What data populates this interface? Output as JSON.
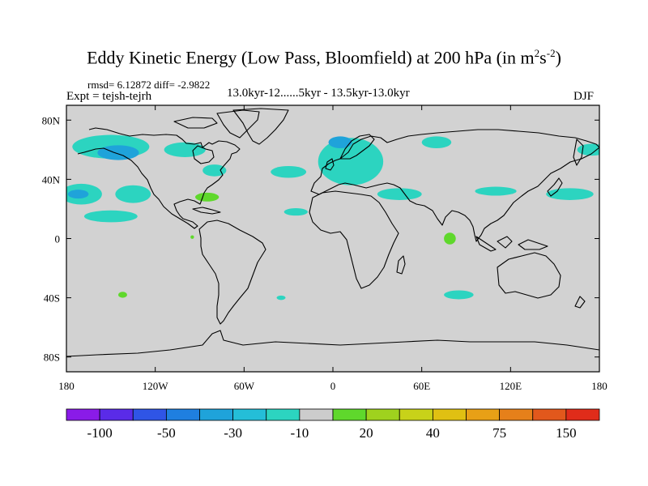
{
  "figure": {
    "title_main": "Eddy Kinetic Energy (Low Pass, Bloomfield) at 200 hPa (in m",
    "title_sup1": "2",
    "title_mid": "s",
    "title_sup2": "-2",
    "title_end": ")",
    "stats": "rmsd= 6.12872 diff= -2.9822",
    "expt": "Expt = tejsh-tejrh",
    "period": "13.0kyr-12......5kyr - 13.5kyr-13.0kyr",
    "season": "DJF"
  },
  "chart_data": {
    "type": "heatmap",
    "projection": "cylindrical equidistant",
    "variable": "Eddy kinetic energy difference",
    "units": "m2 s-2",
    "lon_range": [
      -180,
      180
    ],
    "lat_range": [
      -90,
      90
    ],
    "x_ticks": [
      {
        "lon": -180,
        "label": "180"
      },
      {
        "lon": -120,
        "label": "120W"
      },
      {
        "lon": -60,
        "label": "60W"
      },
      {
        "lon": 0,
        "label": "0"
      },
      {
        "lon": 60,
        "label": "60E"
      },
      {
        "lon": 120,
        "label": "120E"
      },
      {
        "lon": 180,
        "label": "180"
      }
    ],
    "y_ticks": [
      {
        "lat": 80,
        "label": "80N"
      },
      {
        "lat": 40,
        "label": "40N"
      },
      {
        "lat": 0,
        "label": "0"
      },
      {
        "lat": -40,
        "label": "40S"
      },
      {
        "lat": -80,
        "label": "80S"
      }
    ],
    "colorbar": {
      "colors": [
        "#8a1be8",
        "#5a2be8",
        "#2f55e6",
        "#1f7fe0",
        "#1fa3da",
        "#24bed8",
        "#2cd4c0",
        "#cccccc",
        "#5fd82c",
        "#9fd21e",
        "#c8d219",
        "#e0c012",
        "#e8a016",
        "#e6801a",
        "#e2581c",
        "#e02c1a"
      ],
      "labels": [
        {
          "boundary": 1,
          "text": "-100"
        },
        {
          "boundary": 3,
          "text": "-50"
        },
        {
          "boundary": 5,
          "text": "-30"
        },
        {
          "boundary": 7,
          "text": "-10"
        },
        {
          "boundary": 9,
          "text": "20"
        },
        {
          "boundary": 11,
          "text": "40"
        },
        {
          "boundary": 13,
          "text": "75"
        },
        {
          "boundary": 15,
          "text": "150"
        }
      ]
    },
    "anomalies": [
      {
        "name": "north-pacific-west",
        "lon": -150,
        "lat": 62,
        "rlon": 26,
        "rlat": 8,
        "level": -10
      },
      {
        "name": "north-pacific-core",
        "lon": -145,
        "lat": 58,
        "rlon": 14,
        "rlat": 5,
        "level": -30
      },
      {
        "name": "alaska-gulf",
        "lon": -100,
        "lat": 60,
        "rlon": 14,
        "rlat": 5,
        "level": -10
      },
      {
        "name": "central-pacific",
        "lon": -170,
        "lat": 30,
        "rlon": 14,
        "rlat": 7,
        "level": -10
      },
      {
        "name": "central-pacific-core",
        "lon": -172,
        "lat": 30,
        "rlon": 7,
        "rlat": 3,
        "level": -30
      },
      {
        "name": "east-pacific",
        "lon": -135,
        "lat": 30,
        "rlon": 12,
        "rlat": 6,
        "level": -10
      },
      {
        "name": "east-pacific-south",
        "lon": -150,
        "lat": 15,
        "rlon": 18,
        "rlat": 4,
        "level": -10
      },
      {
        "name": "hudson",
        "lon": -80,
        "lat": 46,
        "rlon": 8,
        "rlat": 4,
        "level": -10
      },
      {
        "name": "north-atlantic",
        "lon": -30,
        "lat": 45,
        "rlon": 12,
        "rlat": 4,
        "level": -10
      },
      {
        "name": "europe",
        "lon": 12,
        "lat": 52,
        "rlon": 22,
        "rlat": 16,
        "level": -10
      },
      {
        "name": "scandinavia",
        "lon": 5,
        "lat": 65,
        "rlon": 8,
        "rlat": 4,
        "level": -30
      },
      {
        "name": "siberia",
        "lon": 70,
        "lat": 65,
        "rlon": 10,
        "rlat": 4,
        "level": -10
      },
      {
        "name": "east-russia",
        "lon": 175,
        "lat": 60,
        "rlon": 10,
        "rlat": 4,
        "level": -10
      },
      {
        "name": "middle-east",
        "lon": 45,
        "lat": 30,
        "rlon": 15,
        "rlat": 4,
        "level": -10
      },
      {
        "name": "china",
        "lon": 110,
        "lat": 32,
        "rlon": 14,
        "rlat": 3,
        "level": -10
      },
      {
        "name": "west-pacific",
        "lon": 160,
        "lat": 30,
        "rlon": 16,
        "rlat": 4,
        "level": -10
      },
      {
        "name": "atlantic-subtrop",
        "lon": -25,
        "lat": 18,
        "rlon": 8,
        "rlat": 2.5,
        "level": -10
      },
      {
        "name": "south-indian",
        "lon": 85,
        "lat": -38,
        "rlon": 10,
        "rlat": 3,
        "level": -10
      },
      {
        "name": "south-atlantic",
        "lon": -35,
        "lat": -40,
        "rlon": 3,
        "rlat": 1.5,
        "level": -10
      },
      {
        "name": "us-east-positive",
        "lon": -85,
        "lat": 28,
        "rlon": 8,
        "rlat": 3,
        "level": 20
      },
      {
        "name": "south-pacific-positive",
        "lon": -142,
        "lat": -38,
        "rlon": 3,
        "rlat": 2,
        "level": 20
      },
      {
        "name": "equatorial-pacific-positive",
        "lon": -95,
        "lat": 1,
        "rlon": 1.2,
        "rlat": 1.2,
        "level": 20
      },
      {
        "name": "indian-ocean-positive",
        "lon": 79,
        "lat": 0,
        "rlon": 4,
        "rlat": 4,
        "level": 20
      }
    ]
  }
}
